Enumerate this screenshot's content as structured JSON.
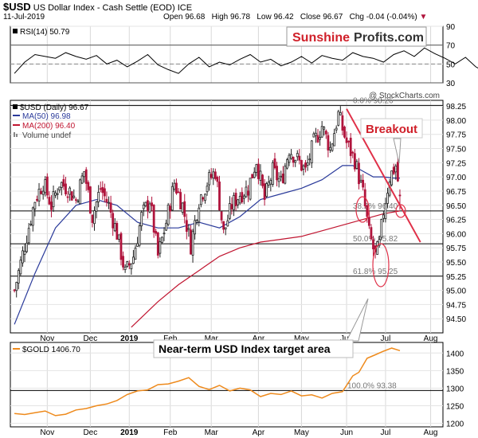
{
  "header": {
    "symbol": "$USD",
    "name": "US Dollar Index - Cash Settle (EOD)",
    "exchange": "ICE",
    "date": "11-Jul-2019",
    "open_label": "Open",
    "open": "96.68",
    "high_label": "High",
    "high": "96.78",
    "low_label": "Low",
    "low": "96.42",
    "close_label": "Close",
    "close": "96.67",
    "chg_label": "Chg",
    "chg": "-0.04 (-0.04%)",
    "watermark": "@ StockCharts.com"
  },
  "brand": {
    "part1": "Sunshine",
    "part2": "Profits.com",
    "color1": "#d0202a"
  },
  "colors": {
    "up": "#222222",
    "down": "#b0143c",
    "ma50": "#2a3a9a",
    "ma200": "#c01530",
    "gold": "#ee8a1c",
    "trendline": "#e03048",
    "annotation": "#d0202a"
  },
  "chart_data": [
    {
      "type": "line",
      "panel": "RSI",
      "legend": "RSI(14) 50.79",
      "ylim": [
        30,
        90
      ],
      "yticks": [
        30,
        50,
        70,
        90
      ],
      "reference_lines": [
        30,
        50,
        70
      ],
      "x": [
        0,
        5,
        10,
        15,
        20,
        25,
        30,
        35,
        40,
        45,
        50,
        55,
        60,
        65,
        70,
        75,
        80,
        85,
        90,
        95,
        100,
        105,
        110,
        115,
        120,
        125,
        130,
        135,
        140,
        145,
        150,
        155,
        160,
        165,
        170,
        175,
        180,
        185,
        190,
        195,
        200,
        205,
        210,
        215,
        220,
        225,
        230,
        235,
        240,
        245,
        250
      ],
      "values": [
        40,
        52,
        60,
        58,
        56,
        62,
        58,
        55,
        59,
        50,
        54,
        47,
        53,
        60,
        49,
        44,
        40,
        50,
        57,
        47,
        52,
        49,
        55,
        60,
        52,
        55,
        48,
        52,
        58,
        51,
        59,
        56,
        54,
        62,
        58,
        56,
        52,
        60,
        64,
        58,
        67,
        61,
        56,
        50,
        57,
        47,
        41,
        44,
        56,
        58,
        50.79
      ]
    },
    {
      "type": "candlestick",
      "panel": "price",
      "title": "$USD (Daily) 96.67",
      "ylim": [
        94.25,
        98.35
      ],
      "yticks": [
        94.5,
        94.75,
        95.0,
        95.25,
        95.5,
        95.75,
        96.0,
        96.25,
        96.5,
        96.75,
        97.0,
        97.25,
        97.5,
        97.75,
        98.0,
        98.25
      ],
      "x_labels": [
        {
          "x": 16,
          "label": "Nov"
        },
        {
          "x": 37,
          "label": "Dec"
        },
        {
          "x": 56,
          "label": "2019"
        },
        {
          "x": 76,
          "label": "Feb"
        },
        {
          "x": 96,
          "label": "Mar"
        },
        {
          "x": 119,
          "label": "Apr"
        },
        {
          "x": 140,
          "label": "May"
        },
        {
          "x": 162,
          "label": "Jun"
        },
        {
          "x": 181,
          "label": "Jul"
        },
        {
          "x": 203,
          "label": "Aug"
        }
      ],
      "close_path": {
        "x": [
          0,
          5,
          10,
          14,
          18,
          22,
          26,
          30,
          34,
          38,
          42,
          46,
          50,
          54,
          58,
          62,
          66,
          70,
          74,
          78,
          82,
          86,
          90,
          94,
          98,
          102,
          106,
          110,
          114,
          118,
          122,
          126,
          130,
          134,
          138,
          142,
          146,
          150,
          154,
          158,
          162,
          166,
          170,
          173,
          176,
          178,
          180,
          183,
          186,
          188
        ],
        "y": [
          95.0,
          95.8,
          96.6,
          96.9,
          96.5,
          96.9,
          96.8,
          96.6,
          97.1,
          96.3,
          96.8,
          96.5,
          96.0,
          95.3,
          95.6,
          96.3,
          96.6,
          95.6,
          96.2,
          96.9,
          96.5,
          95.8,
          96.6,
          96.9,
          97.1,
          96.0,
          96.5,
          96.7,
          96.8,
          97.3,
          96.6,
          97.1,
          96.9,
          97.5,
          97.3,
          97.1,
          97.6,
          97.9,
          97.5,
          98.1,
          97.6,
          97.3,
          96.7,
          96.0,
          95.6,
          95.8,
          96.4,
          97.0,
          97.2,
          96.67
        ]
      },
      "volatility": 0.28,
      "last_x": 188,
      "x_range": [
        -2,
        209
      ],
      "ma50": {
        "label": "MA(50) 96.98",
        "x": [
          0,
          10,
          20,
          30,
          40,
          50,
          60,
          70,
          80,
          90,
          100,
          110,
          120,
          130,
          140,
          150,
          160,
          165,
          170,
          175,
          180,
          185,
          188
        ],
        "values": [
          94.4,
          95.3,
          96.1,
          96.5,
          96.6,
          96.5,
          96.2,
          96.1,
          96.1,
          96.2,
          96.1,
          96.3,
          96.6,
          96.7,
          96.8,
          96.95,
          97.2,
          97.2,
          97.1,
          97.0,
          97.0,
          96.98,
          96.98
        ]
      },
      "ma200": {
        "label": "MA(200) 96.40",
        "x": [
          57,
          70,
          80,
          90,
          100,
          110,
          120,
          130,
          140,
          150,
          160,
          170,
          180,
          188
        ],
        "values": [
          94.35,
          94.8,
          95.1,
          95.35,
          95.6,
          95.75,
          95.85,
          95.9,
          95.95,
          96.05,
          96.15,
          96.25,
          96.35,
          96.4
        ]
      },
      "volume_label": "Volume undef",
      "horizontal_lines": [
        {
          "y": 98.26,
          "label": "0.0% 98.26"
        },
        {
          "y": 96.4,
          "label": "38.2% 96.40"
        },
        {
          "y": 95.82,
          "label": "50.0% 95.82"
        },
        {
          "y": 95.25,
          "label": "61.8% 95.25"
        }
      ],
      "trendline": {
        "x": [
          162,
          198
        ],
        "y": [
          98.2,
          95.85
        ]
      },
      "breakout_label": "Breakout",
      "target_label": "Near-term USD Index target area"
    },
    {
      "type": "line",
      "panel": "gold",
      "legend": "$GOLD 1406.70",
      "ylim": [
        1190,
        1430
      ],
      "yticks": [
        1200,
        1250,
        1300,
        1350,
        1400
      ],
      "x": [
        0,
        5,
        10,
        15,
        20,
        25,
        30,
        35,
        40,
        45,
        50,
        55,
        60,
        65,
        70,
        75,
        80,
        85,
        90,
        95,
        100,
        105,
        110,
        115,
        120,
        125,
        130,
        135,
        140,
        145,
        150,
        155,
        160,
        165,
        168,
        172,
        176,
        180,
        184,
        188
      ],
      "values": [
        1228,
        1225,
        1230,
        1235,
        1222,
        1226,
        1238,
        1242,
        1250,
        1255,
        1265,
        1282,
        1292,
        1295,
        1310,
        1312,
        1320,
        1330,
        1305,
        1296,
        1308,
        1292,
        1300,
        1295,
        1276,
        1285,
        1282,
        1292,
        1278,
        1281,
        1272,
        1285,
        1290,
        1335,
        1345,
        1385,
        1395,
        1405,
        1414,
        1406.7
      ]
    }
  ],
  "gold_ref": {
    "y": 1293.38,
    "label": "100.0% 93.38"
  }
}
